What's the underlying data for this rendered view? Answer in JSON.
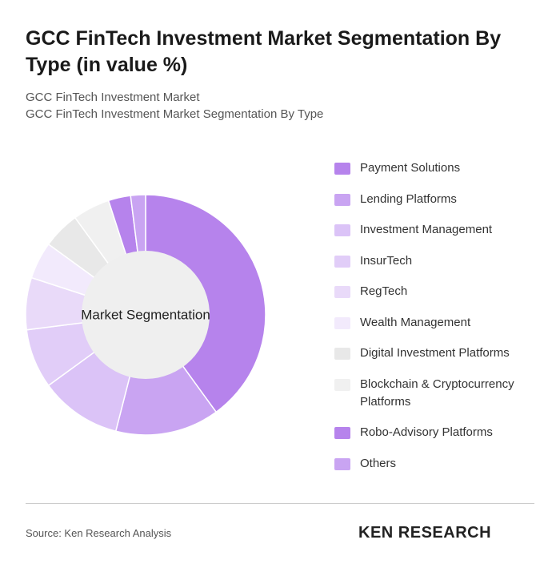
{
  "chart_data": {
    "type": "donut",
    "title": "GCC FinTech Investment Market Segmentation By Type (in value %)",
    "subtitle": [
      "GCC FinTech Investment Market",
      "GCC FinTech Investment Market Segmentation By Type"
    ],
    "center_label": "Market Segmentation",
    "categories": [
      "Payment Solutions",
      "Lending Platforms",
      "Investment Management",
      "InsurTech",
      "RegTech",
      "Wealth Management",
      "Digital Investment Platforms",
      "Blockchain & Cryptocurrency Platforms",
      "Robo-Advisory Platforms",
      "Others"
    ],
    "values": [
      40,
      14,
      11,
      8,
      7,
      5,
      5,
      5,
      3,
      2
    ],
    "colors": [
      "#b683ec",
      "#c9a4f2",
      "#dbc3f7",
      "#e1cdf8",
      "#e9daf9",
      "#f2eafc",
      "#e8e8e8",
      "#f0f0f0",
      "#b683ec",
      "#c9a4f2"
    ],
    "legend": "right",
    "source": "Source: Ken Research Analysis",
    "logo": "KEN RESEARCH"
  }
}
